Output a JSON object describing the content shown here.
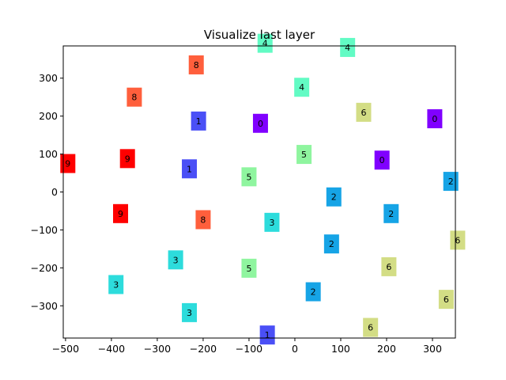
{
  "chart_data": {
    "type": "scatter",
    "title": "Visualize last layer",
    "xlabel": "",
    "ylabel": "",
    "xlim": [
      -505,
      350
    ],
    "ylim": [
      -385,
      385
    ],
    "xticks": [
      -500,
      -400,
      -300,
      -200,
      -100,
      0,
      100,
      200,
      300
    ],
    "yticks": [
      -300,
      -200,
      -100,
      0,
      100,
      200,
      300
    ],
    "xtick_labels": [
      "−500",
      "−400",
      "−300",
      "−200",
      "−100",
      "0",
      "100",
      "200",
      "300"
    ],
    "ytick_labels": [
      "−300",
      "−200",
      "−100",
      "0",
      "100",
      "200",
      "300"
    ],
    "grid": false,
    "label_colors": {
      "0": "#8000ff",
      "1": "#4a4ff6",
      "2": "#16a4e6",
      "3": "#2ddcdc",
      "4": "#62fbc4",
      "5": "#8ff59f",
      "6": "#d3dd85",
      "8": "#ff5f3c",
      "9": "#ff0000"
    },
    "points": [
      {
        "x": -65,
        "y": 392,
        "label": "4"
      },
      {
        "x": 115,
        "y": 381,
        "label": "4"
      },
      {
        "x": -215,
        "y": 335,
        "label": "8"
      },
      {
        "x": 15,
        "y": 276,
        "label": "4"
      },
      {
        "x": -350,
        "y": 250,
        "label": "8"
      },
      {
        "x": 150,
        "y": 210,
        "label": "6"
      },
      {
        "x": 305,
        "y": 193,
        "label": "0"
      },
      {
        "x": -210,
        "y": 187,
        "label": "1"
      },
      {
        "x": -75,
        "y": 181,
        "label": "0"
      },
      {
        "x": 20,
        "y": 99,
        "label": "5"
      },
      {
        "x": -365,
        "y": 88,
        "label": "9"
      },
      {
        "x": -495,
        "y": 75,
        "label": "9"
      },
      {
        "x": 190,
        "y": 84,
        "label": "0"
      },
      {
        "x": -230,
        "y": 61,
        "label": "1"
      },
      {
        "x": -100,
        "y": 40,
        "label": "5"
      },
      {
        "x": 340,
        "y": 28,
        "label": "2"
      },
      {
        "x": 85,
        "y": -13,
        "label": "2"
      },
      {
        "x": -380,
        "y": -57,
        "label": "9"
      },
      {
        "x": -200,
        "y": -73,
        "label": "8"
      },
      {
        "x": 210,
        "y": -57,
        "label": "2"
      },
      {
        "x": -50,
        "y": -80,
        "label": "3"
      },
      {
        "x": 355,
        "y": -127,
        "label": "6"
      },
      {
        "x": 80,
        "y": -137,
        "label": "2"
      },
      {
        "x": -260,
        "y": -179,
        "label": "3"
      },
      {
        "x": -100,
        "y": -201,
        "label": "5"
      },
      {
        "x": 205,
        "y": -197,
        "label": "6"
      },
      {
        "x": -390,
        "y": -244,
        "label": "3"
      },
      {
        "x": 40,
        "y": -263,
        "label": "2"
      },
      {
        "x": 330,
        "y": -283,
        "label": "6"
      },
      {
        "x": -230,
        "y": -318,
        "label": "3"
      },
      {
        "x": 165,
        "y": -357,
        "label": "6"
      },
      {
        "x": -60,
        "y": -377,
        "label": "1"
      }
    ]
  }
}
